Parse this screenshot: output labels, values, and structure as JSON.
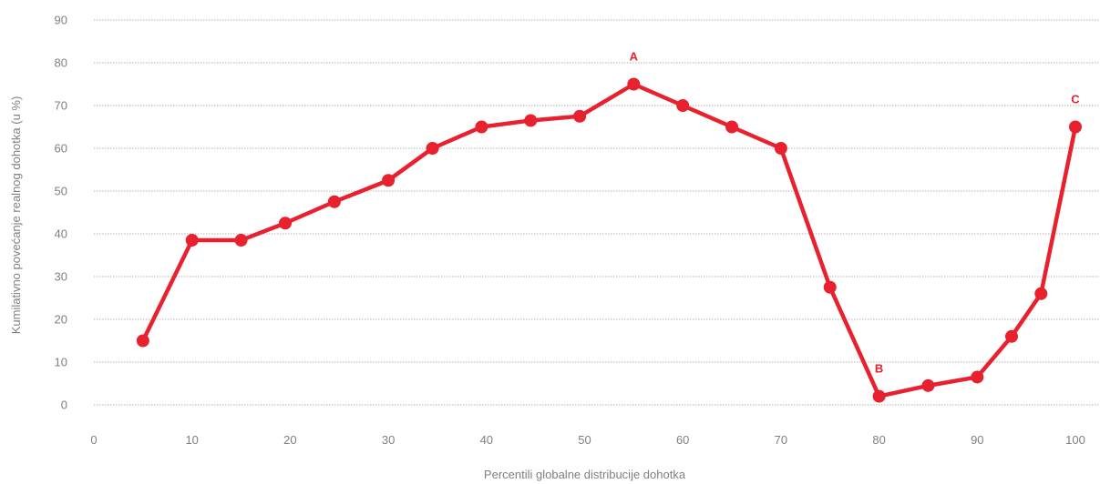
{
  "chart_data": {
    "type": "line",
    "title": "",
    "xlabel": "Percentili globalne distribucije dohotka",
    "ylabel": "Kumilativno povećanje realnog dohotka (u %)",
    "xlim": [
      0,
      100
    ],
    "ylim": [
      0,
      90
    ],
    "x_ticks": [
      0,
      10,
      20,
      30,
      40,
      50,
      60,
      70,
      80,
      90,
      100
    ],
    "y_ticks": [
      0,
      10,
      20,
      30,
      40,
      50,
      60,
      70,
      80,
      90
    ],
    "grid": "horizontal",
    "color": "#e8212e",
    "series": [
      {
        "points": [
          [
            5,
            15
          ],
          [
            10,
            38.5
          ],
          [
            15,
            38.5
          ],
          [
            19.5,
            42.5
          ],
          [
            24.5,
            47.5
          ],
          [
            30,
            52.5
          ],
          [
            34.5,
            60
          ],
          [
            39.5,
            65
          ],
          [
            44.5,
            66.5
          ],
          [
            49.5,
            67.5
          ],
          [
            55,
            75
          ],
          [
            60,
            70
          ],
          [
            65,
            65
          ],
          [
            70,
            60
          ],
          [
            75,
            27.5
          ],
          [
            80,
            2
          ],
          [
            85,
            4.5
          ],
          [
            90,
            6.5
          ],
          [
            93.5,
            16
          ],
          [
            96.5,
            26
          ],
          [
            100,
            65
          ]
        ]
      }
    ],
    "annotations": [
      {
        "label": "A",
        "x": 55,
        "y": 75
      },
      {
        "label": "B",
        "x": 80,
        "y": 2
      },
      {
        "label": "C",
        "x": 100,
        "y": 65
      }
    ]
  }
}
